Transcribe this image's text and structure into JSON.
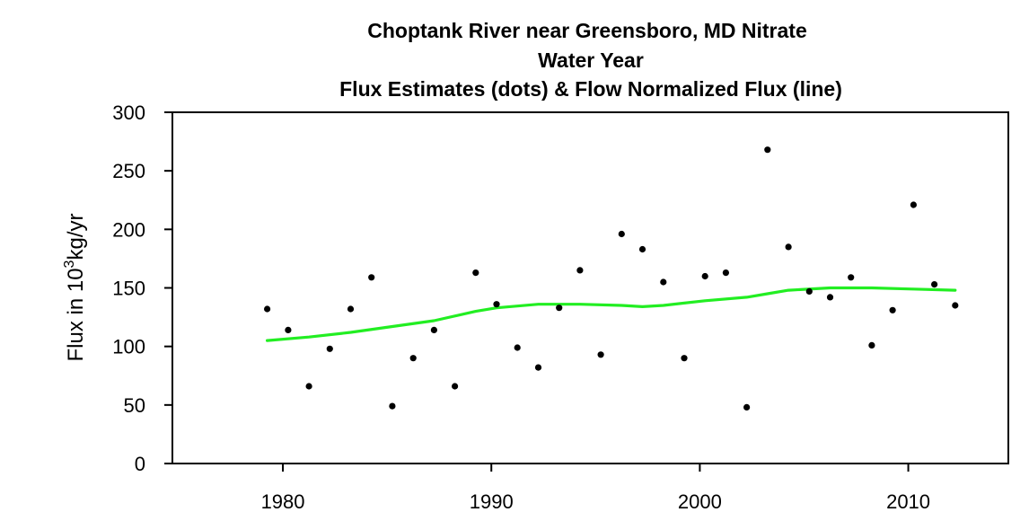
{
  "chart_data": {
    "type": "scatter",
    "title_lines": [
      "Choptank River near Greensboro, MD   Nitrate",
      "Water Year",
      "Flux Estimates (dots) & Flow Normalized Flux (line)"
    ],
    "ylabel": {
      "prefix": "Flux in 10",
      "superscript": "3",
      "suffix": "kg/yr"
    },
    "xlabel": "",
    "xlim": [
      1974.7,
      2014.8
    ],
    "ylim": [
      0,
      300
    ],
    "x_ticks": [
      1980,
      1990,
      2000,
      2010
    ],
    "y_ticks": [
      0,
      50,
      100,
      150,
      200,
      250,
      300
    ],
    "grid": false,
    "series": [
      {
        "name": "Flux Estimates",
        "kind": "points",
        "color": "#000000",
        "points": [
          [
            1979.25,
            132
          ],
          [
            1980.25,
            114
          ],
          [
            1981.25,
            66
          ],
          [
            1982.25,
            98
          ],
          [
            1983.25,
            132
          ],
          [
            1984.25,
            159
          ],
          [
            1985.25,
            49
          ],
          [
            1986.25,
            90
          ],
          [
            1987.25,
            114
          ],
          [
            1988.25,
            66
          ],
          [
            1989.25,
            163
          ],
          [
            1990.25,
            136
          ],
          [
            1991.25,
            99
          ],
          [
            1992.25,
            82
          ],
          [
            1993.25,
            133
          ],
          [
            1994.25,
            165
          ],
          [
            1995.25,
            93
          ],
          [
            1996.25,
            196
          ],
          [
            1997.25,
            183
          ],
          [
            1998.25,
            155
          ],
          [
            1999.25,
            90
          ],
          [
            2000.25,
            160
          ],
          [
            2001.25,
            163
          ],
          [
            2002.25,
            48
          ],
          [
            2003.25,
            268
          ],
          [
            2004.25,
            185
          ],
          [
            2005.25,
            147
          ],
          [
            2006.25,
            142
          ],
          [
            2007.25,
            159
          ],
          [
            2008.25,
            101
          ],
          [
            2009.25,
            131
          ],
          [
            2010.25,
            221
          ],
          [
            2011.25,
            153
          ],
          [
            2012.25,
            135
          ]
        ]
      },
      {
        "name": "Flow Normalized Flux",
        "kind": "line",
        "color": "#22ee22",
        "points": [
          [
            1979.25,
            105
          ],
          [
            1981.25,
            108
          ],
          [
            1983.25,
            112
          ],
          [
            1985.25,
            117
          ],
          [
            1987.25,
            122
          ],
          [
            1989.25,
            130
          ],
          [
            1990.25,
            133
          ],
          [
            1992.25,
            136
          ],
          [
            1994.25,
            136
          ],
          [
            1996.25,
            135
          ],
          [
            1997.25,
            134
          ],
          [
            1998.25,
            135
          ],
          [
            2000.25,
            139
          ],
          [
            2002.25,
            142
          ],
          [
            2003.25,
            145
          ],
          [
            2004.25,
            148
          ],
          [
            2006.25,
            150
          ],
          [
            2008.25,
            150
          ],
          [
            2010.25,
            149
          ],
          [
            2012.25,
            148
          ]
        ]
      }
    ]
  }
}
